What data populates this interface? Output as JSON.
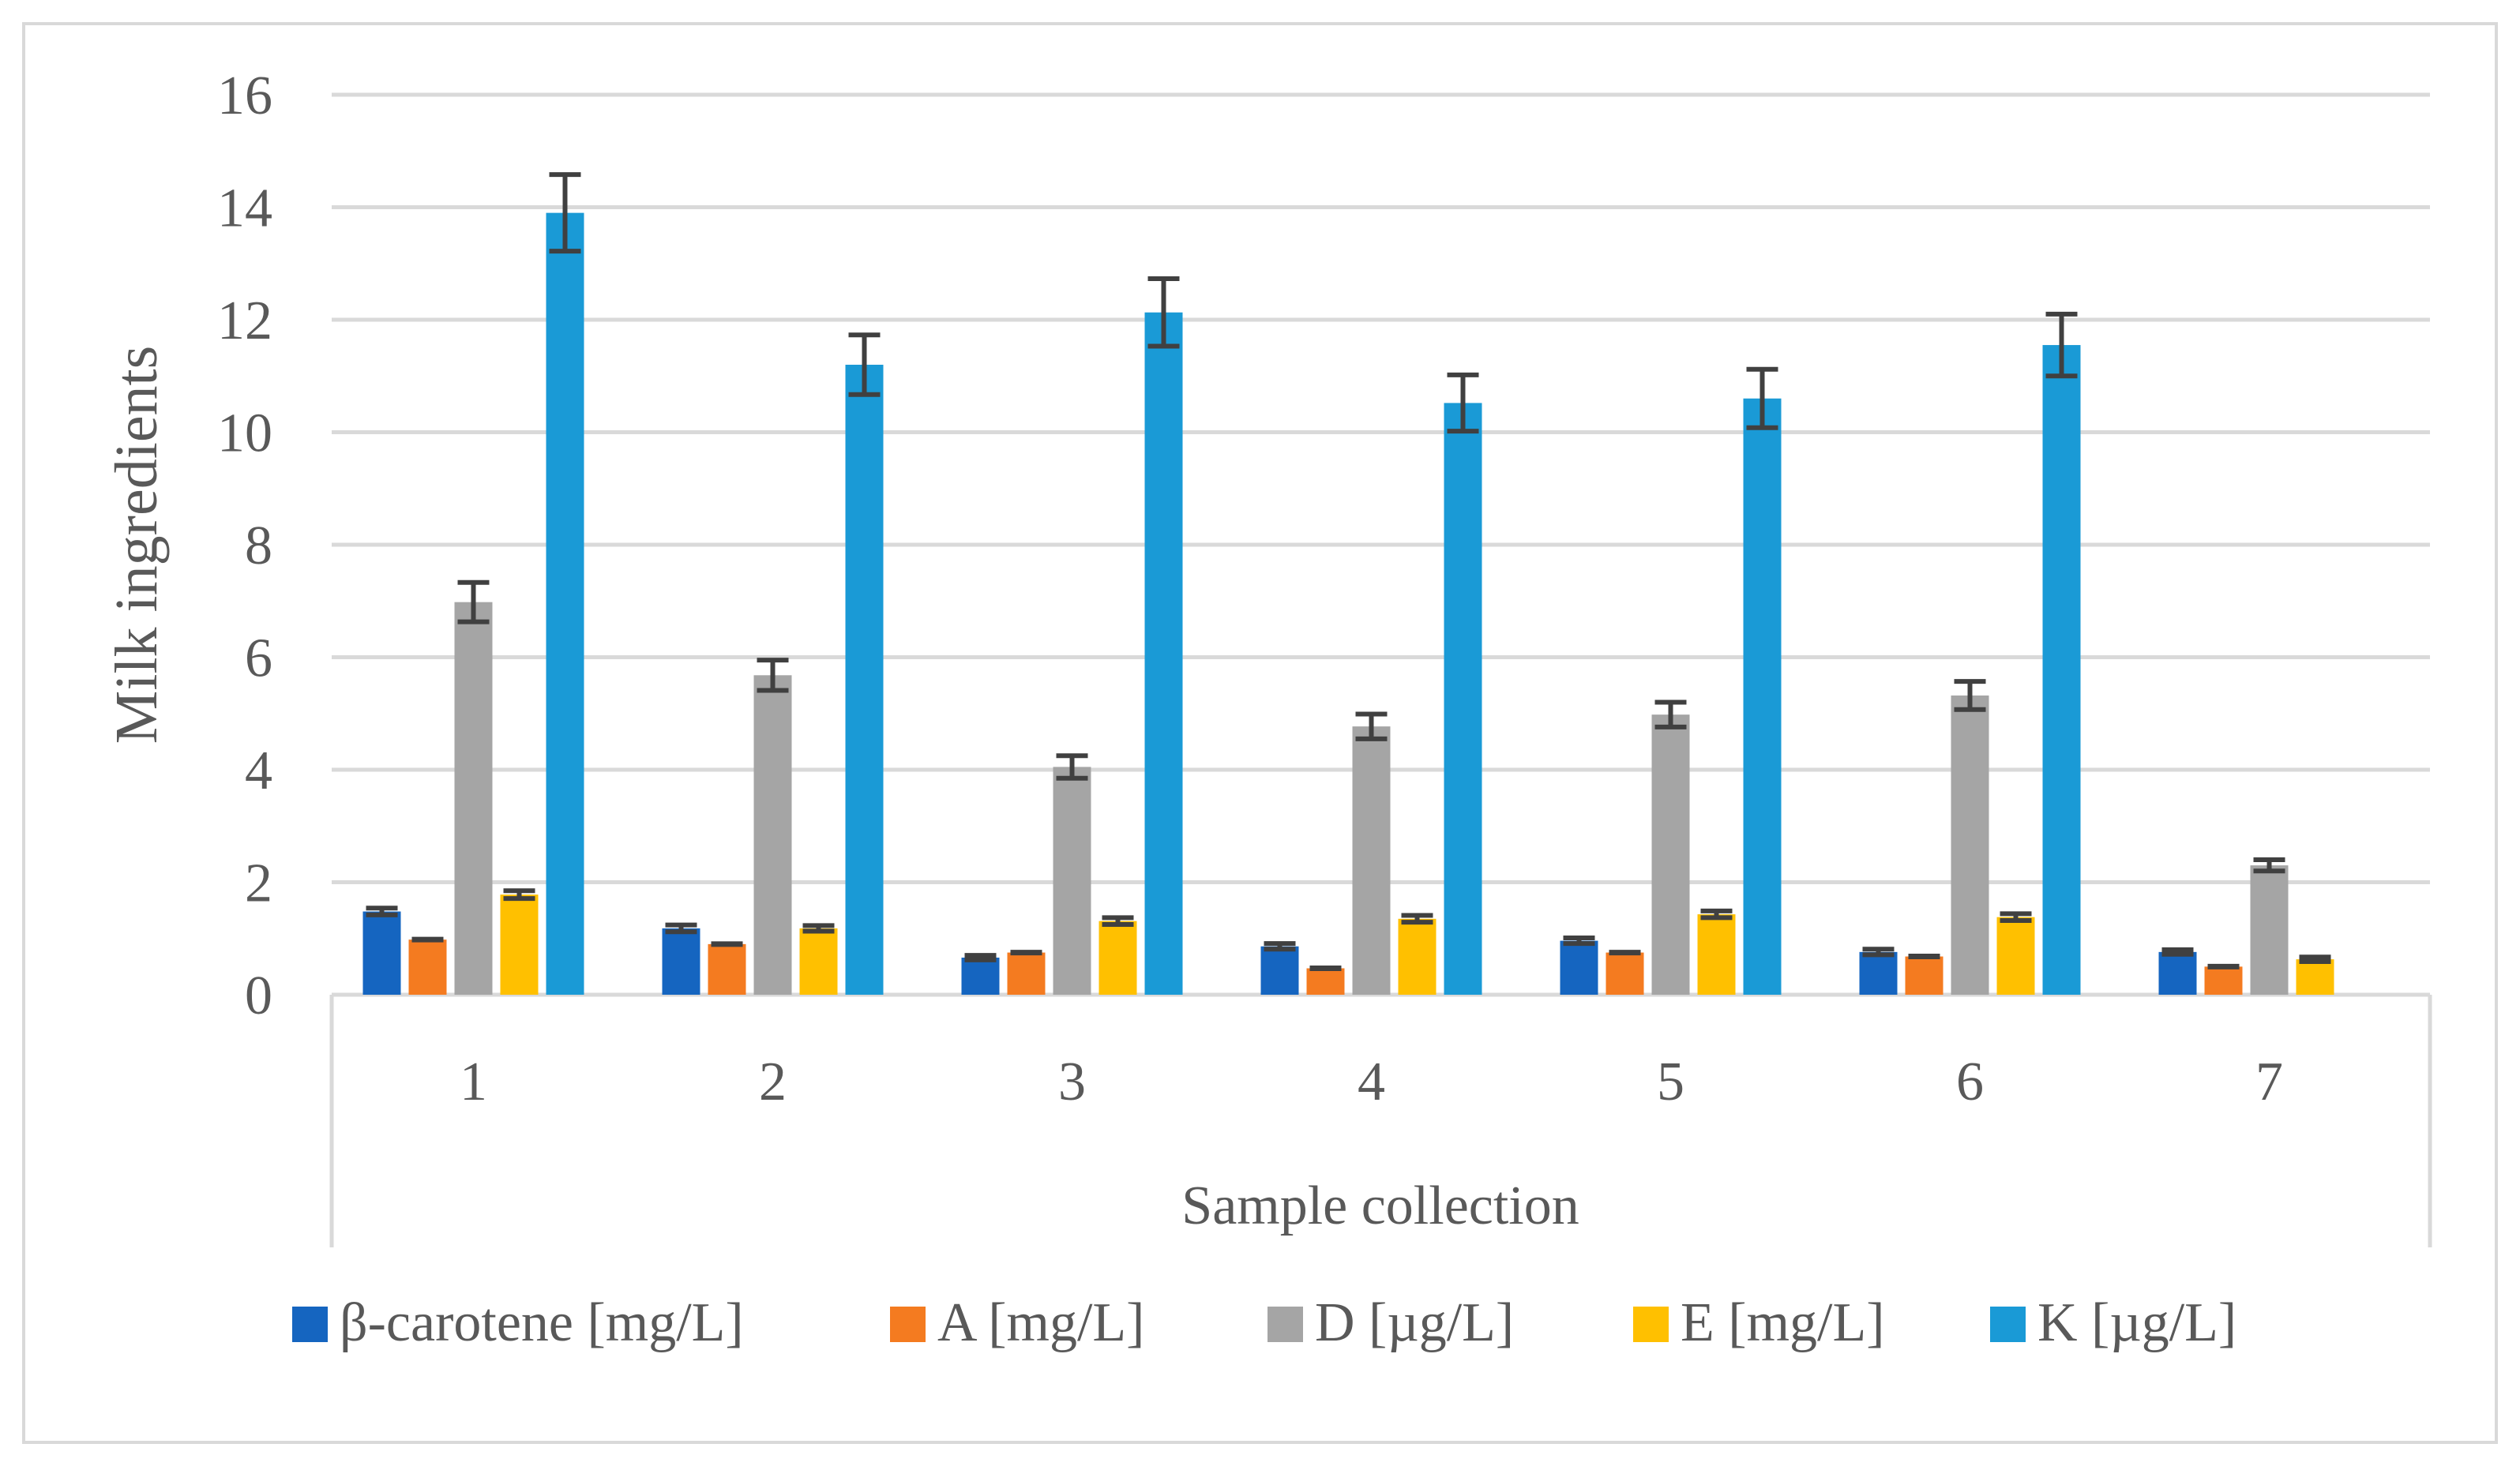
{
  "chart_data": {
    "type": "bar",
    "title": "",
    "xlabel": "Sample collection",
    "ylabel": "Milk ingredients",
    "categories": [
      "1",
      "2",
      "3",
      "4",
      "5",
      "6",
      "7"
    ],
    "ylim": [
      0,
      16
    ],
    "yticks": [
      "0",
      "2",
      "4",
      "6",
      "8",
      "10",
      "12",
      "14",
      "16"
    ],
    "grid": true,
    "legend_position": "bottom",
    "error_bars": true,
    "series": [
      {
        "name": "β-carotene [mg/L]",
        "color": "#1565C0",
        "values": [
          1.48,
          1.18,
          0.66,
          0.86,
          0.96,
          0.76,
          0.76
        ],
        "errors": [
          0.06,
          0.06,
          0.04,
          0.05,
          0.05,
          0.05,
          0.04
        ]
      },
      {
        "name": "A [mg/L]",
        "color": "#F47B20",
        "values": [
          0.98,
          0.9,
          0.75,
          0.47,
          0.75,
          0.68,
          0.5
        ]
      },
      {
        "name": "D [µg/L]",
        "color": "#A5A5A5",
        "values": [
          6.98,
          5.68,
          4.05,
          4.77,
          4.98,
          5.32,
          2.3
        ],
        "errors": [
          0.35,
          0.27,
          0.2,
          0.22,
          0.22,
          0.25,
          0.1
        ]
      },
      {
        "name": "E [mg/L]",
        "color": "#FFC000",
        "values": [
          1.78,
          1.18,
          1.31,
          1.35,
          1.43,
          1.38,
          0.63
        ],
        "errors": [
          0.07,
          0.05,
          0.06,
          0.06,
          0.06,
          0.06,
          0.04
        ]
      },
      {
        "name": "K [µg/L]",
        "color": "#1A9AD6",
        "values": [
          13.9,
          11.2,
          12.13,
          10.52,
          10.6,
          11.55,
          null
        ],
        "errors": [
          0.68,
          0.53,
          0.6,
          0.5,
          0.52,
          0.55,
          null
        ]
      }
    ]
  }
}
